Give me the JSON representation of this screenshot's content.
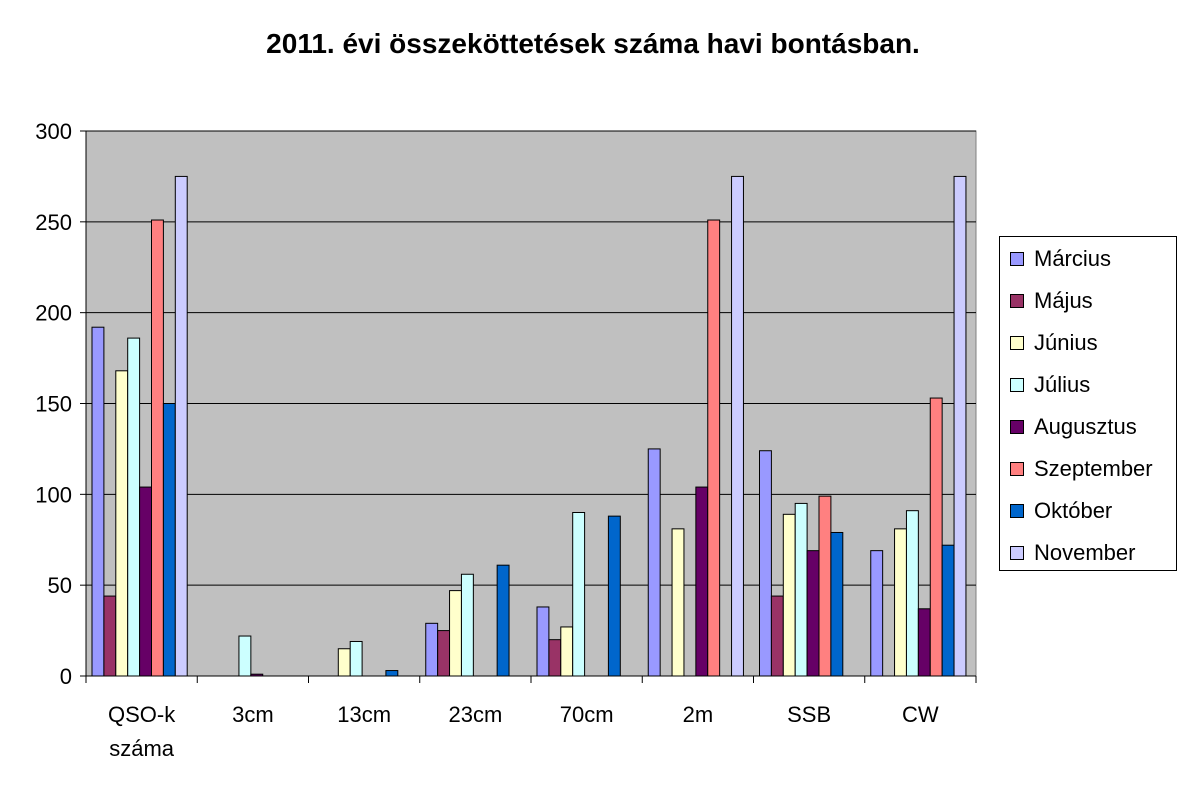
{
  "chart_data": {
    "type": "bar",
    "title": "2011. évi összeköttetések száma havi bontásban.",
    "xlabel": "",
    "ylabel": "",
    "ylim": [
      0,
      300
    ],
    "yticks": [
      0,
      50,
      100,
      150,
      200,
      250,
      300
    ],
    "grid": true,
    "legend_position": "right",
    "plot_background": "#c0c0c0",
    "categories": [
      [
        "QSO-k",
        "száma"
      ],
      [
        "3cm"
      ],
      [
        "13cm"
      ],
      [
        "23cm"
      ],
      [
        "70cm"
      ],
      [
        "2m"
      ],
      [
        "SSB"
      ],
      [
        "CW"
      ]
    ],
    "series": [
      {
        "name": "Március",
        "color": "#9999ff",
        "values": [
          192,
          0,
          0,
          29,
          38,
          125,
          124,
          69
        ]
      },
      {
        "name": "Május",
        "color": "#993366",
        "values": [
          44,
          0,
          0,
          25,
          20,
          0,
          44,
          0
        ]
      },
      {
        "name": "Június",
        "color": "#ffffcc",
        "values": [
          168,
          0,
          15,
          47,
          27,
          81,
          89,
          81
        ]
      },
      {
        "name": "Július",
        "color": "#ccffff",
        "values": [
          186,
          22,
          19,
          56,
          90,
          0,
          95,
          91
        ]
      },
      {
        "name": "Augusztus",
        "color": "#660066",
        "values": [
          104,
          1,
          0,
          0,
          0,
          104,
          69,
          37
        ]
      },
      {
        "name": "Szeptember",
        "color": "#ff8080",
        "values": [
          251,
          0,
          0,
          0,
          0,
          251,
          99,
          153
        ]
      },
      {
        "name": "Október",
        "color": "#0066cc",
        "values": [
          150,
          0,
          3,
          61,
          88,
          0,
          79,
          72
        ]
      },
      {
        "name": "November",
        "color": "#ccccff",
        "values": [
          275,
          0,
          0,
          0,
          0,
          275,
          0,
          275
        ]
      }
    ]
  }
}
